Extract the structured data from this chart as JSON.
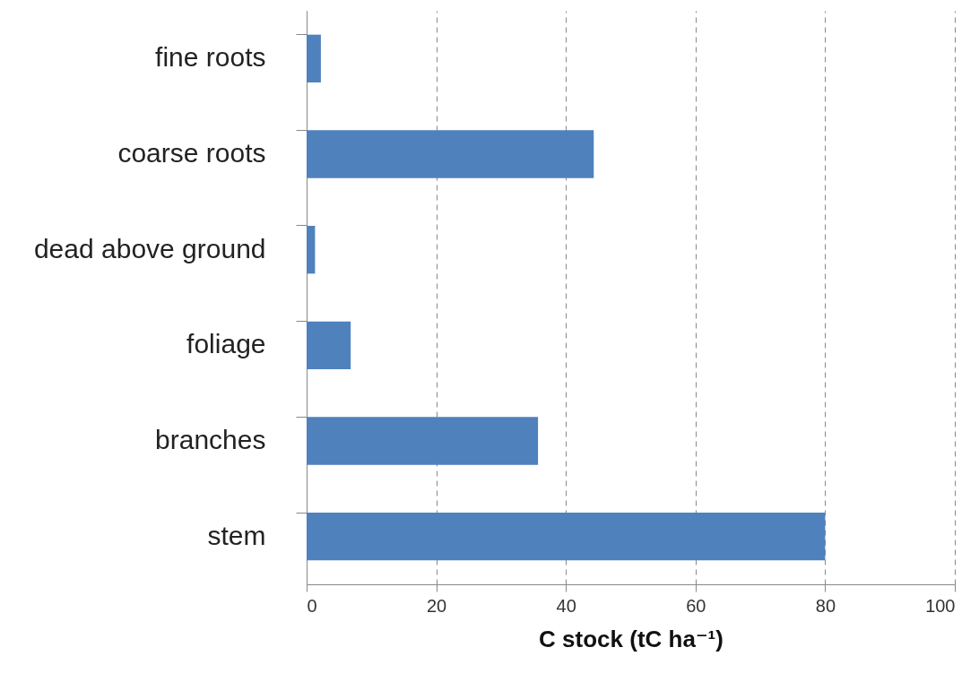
{
  "chart_data": {
    "type": "bar",
    "orientation": "horizontal",
    "xlabel": "C stock (tC ha⁻¹)",
    "categories": [
      "fine roots",
      "coarse roots",
      "dead above ground",
      "foliage",
      "branches",
      "stem"
    ],
    "values": [
      2.2,
      44.3,
      1.3,
      6.8,
      35.7,
      80
    ],
    "color": "#4f81bd",
    "xlim": [
      0,
      100
    ],
    "xticks": [
      0,
      20,
      40,
      60,
      80,
      100
    ],
    "grid": "x",
    "line_style": "dashed"
  }
}
